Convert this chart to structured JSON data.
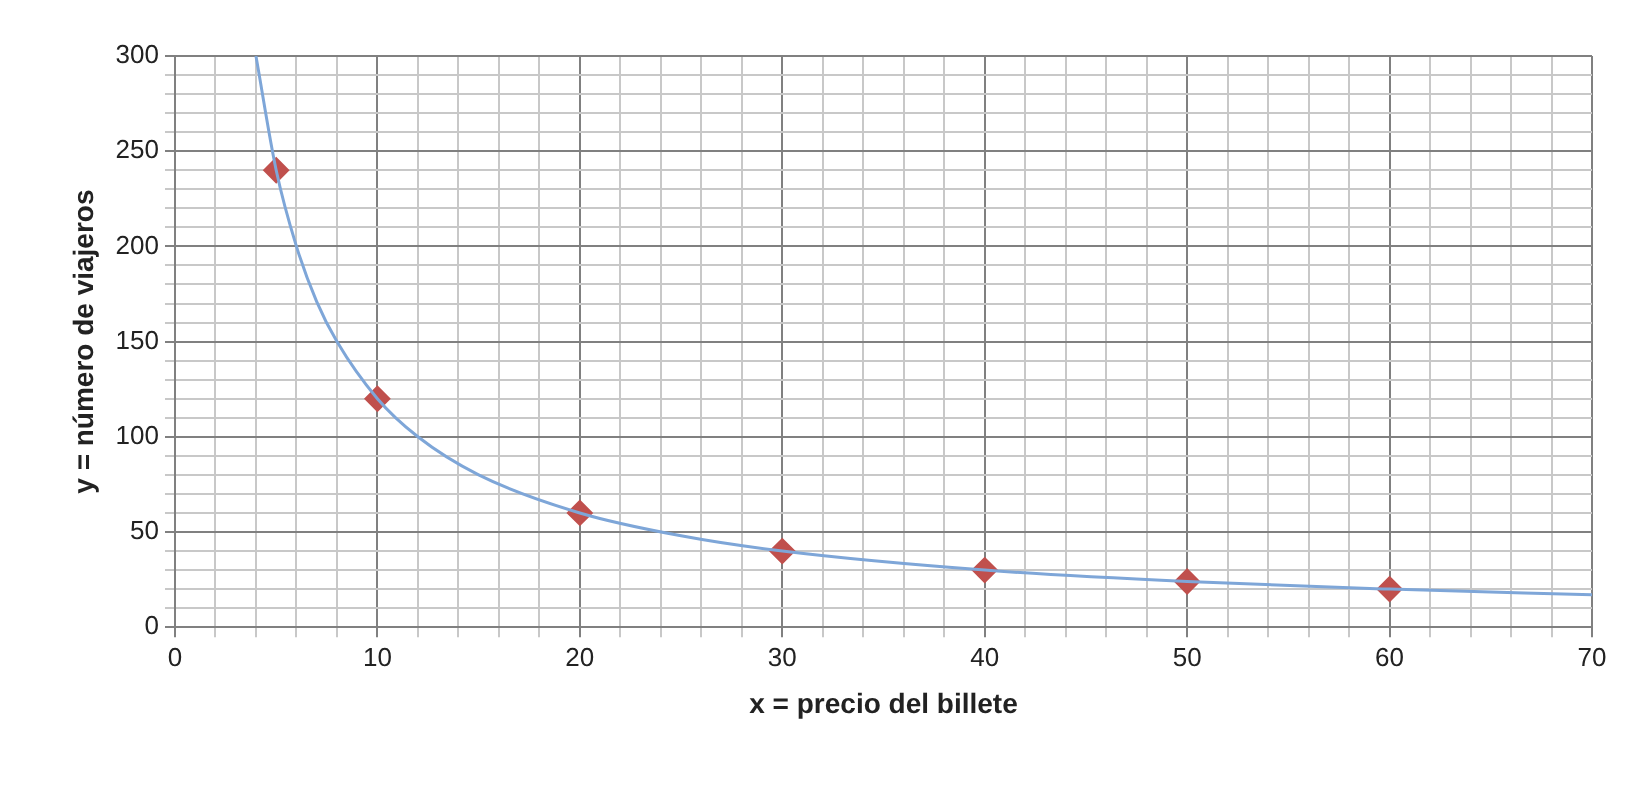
{
  "chart_data": {
    "type": "scatter",
    "xlabel": "x = precio del billete",
    "ylabel": "y = número de viajeros",
    "xlim": [
      0,
      70
    ],
    "ylim": [
      0,
      300
    ],
    "xticks": [
      0,
      {
        "value": 2,
        "label": null
      },
      {
        "value": 4,
        "label": null
      },
      {
        "value": 6,
        "label": null
      },
      {
        "value": 8,
        "label": null
      },
      10,
      {
        "value": 12,
        "label": null
      },
      {
        "value": 14,
        "label": null
      },
      {
        "value": 16,
        "label": null
      },
      {
        "value": 18,
        "label": null
      },
      20,
      {
        "value": 22,
        "label": null
      },
      {
        "value": 24,
        "label": null
      },
      {
        "value": 26,
        "label": null
      },
      {
        "value": 28,
        "label": null
      },
      30,
      {
        "value": 32,
        "label": null
      },
      {
        "value": 34,
        "label": null
      },
      {
        "value": 36,
        "label": null
      },
      {
        "value": 38,
        "label": null
      },
      40,
      {
        "value": 42,
        "label": null
      },
      {
        "value": 44,
        "label": null
      },
      {
        "value": 46,
        "label": null
      },
      {
        "value": 48,
        "label": null
      },
      50,
      {
        "value": 52,
        "label": null
      },
      {
        "value": 54,
        "label": null
      },
      {
        "value": 56,
        "label": null
      },
      {
        "value": 58,
        "label": null
      },
      60,
      {
        "value": 62,
        "label": null
      },
      {
        "value": 64,
        "label": null
      },
      {
        "value": 66,
        "label": null
      },
      {
        "value": 68,
        "label": null
      },
      70
    ],
    "yticks": [
      0,
      {
        "value": 10,
        "label": null
      },
      {
        "value": 20,
        "label": null
      },
      {
        "value": 30,
        "label": null
      },
      {
        "value": 40,
        "label": null
      },
      50,
      {
        "value": 60,
        "label": null
      },
      {
        "value": 70,
        "label": null
      },
      {
        "value": 80,
        "label": null
      },
      {
        "value": 90,
        "label": null
      },
      100,
      {
        "value": 110,
        "label": null
      },
      {
        "value": 120,
        "label": null
      },
      {
        "value": 130,
        "label": null
      },
      {
        "value": 140,
        "label": null
      },
      150,
      {
        "value": 160,
        "label": null
      },
      {
        "value": 170,
        "label": null
      },
      {
        "value": 180,
        "label": null
      },
      {
        "value": 190,
        "label": null
      },
      200,
      {
        "value": 210,
        "label": null
      },
      {
        "value": 220,
        "label": null
      },
      {
        "value": 230,
        "label": null
      },
      {
        "value": 240,
        "label": null
      },
      250,
      {
        "value": 260,
        "label": null
      },
      {
        "value": 270,
        "label": null
      },
      {
        "value": 280,
        "label": null
      },
      {
        "value": 290,
        "label": null
      },
      300
    ],
    "grid": true,
    "legend": false,
    "series": [
      {
        "type": "line",
        "marker": "none",
        "color": "#7ea6d8",
        "x": [
          4,
          5,
          6,
          7,
          8,
          10,
          12,
          15,
          20,
          25,
          30,
          40,
          50,
          60,
          70
        ],
        "values": [
          300,
          240,
          200,
          171,
          150,
          120,
          100,
          80,
          60,
          48,
          40,
          30,
          24,
          20,
          17
        ]
      },
      {
        "type": "scatter",
        "marker": "diamond",
        "color": "#c0504d",
        "x": [
          5,
          10,
          20,
          30,
          40,
          50,
          60
        ],
        "values": [
          240,
          120,
          60,
          40,
          30,
          24,
          20
        ]
      }
    ]
  }
}
